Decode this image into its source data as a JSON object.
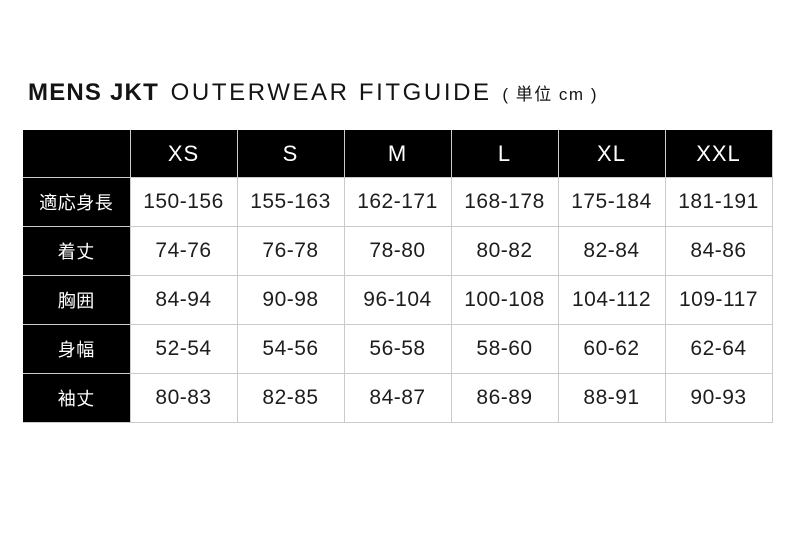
{
  "header": {
    "brand": "MENS JKT",
    "main": "OUTERWEAR FITGUIDE",
    "unit": "( 単位 cm )"
  },
  "chart_data": {
    "type": "table",
    "title": "MENS JKT OUTERWEAR FITGUIDE",
    "unit": "cm",
    "corner_label": "",
    "columns": [
      "XS",
      "S",
      "M",
      "L",
      "XL",
      "XXL"
    ],
    "rows": [
      {
        "label": "適応身長",
        "values": [
          "150-156",
          "155-163",
          "162-171",
          "168-178",
          "175-184",
          "181-191"
        ]
      },
      {
        "label": "着丈",
        "values": [
          "74-76",
          "76-78",
          "78-80",
          "80-82",
          "82-84",
          "84-86"
        ]
      },
      {
        "label": "胸囲",
        "values": [
          "84-94",
          "90-98",
          "96-104",
          "100-108",
          "104-112",
          "109-117"
        ]
      },
      {
        "label": "身幅",
        "values": [
          "52-54",
          "54-56",
          "56-58",
          "58-60",
          "60-62",
          "62-64"
        ]
      },
      {
        "label": "袖丈",
        "values": [
          "80-83",
          "82-85",
          "84-87",
          "86-89",
          "88-91",
          "90-93"
        ]
      }
    ]
  },
  "colors": {
    "background": "#ffffff",
    "header_bg": "#000000",
    "header_text": "#ffffff",
    "cell_text": "#1a1a1a",
    "border": "#cccccc"
  }
}
